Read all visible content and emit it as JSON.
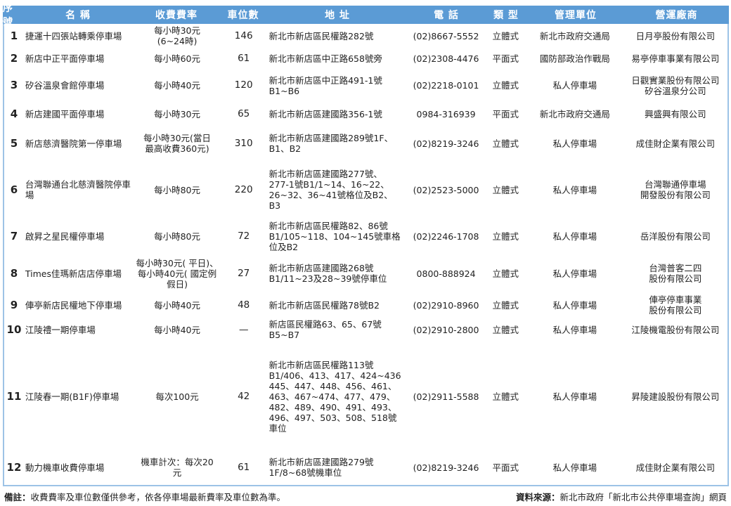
{
  "colors": {
    "header_bg": "#5b9bd5",
    "border": "#9dc3e6"
  },
  "headers": [
    "序號",
    "名 稱",
    "收費費率",
    "車位數",
    "地 址",
    "電 話",
    "類 型",
    "管理單位",
    "營運廠商"
  ],
  "rows": [
    [
      "1",
      "捷運十四張站轉乘停車場",
      "每小時30元\n(6~24時)",
      "146",
      "新北市新店區民權路282號",
      "(02)8667-5552",
      "立體式",
      "新北市政府交通局",
      "日月亭股份有限公司"
    ],
    [
      "2",
      "新店中正平面停車場",
      "每小時60元",
      "61",
      "新北市新店區中正路658號旁",
      "(02)2308-4476",
      "平面式",
      "國防部政治作戰局",
      "易亭停車事業有限公司"
    ],
    [
      "3",
      "矽谷溫泉會館停車場",
      "每小時40元",
      "120",
      "新北市新店區中正路491-1號\nB1~B6",
      "(02)2218-0101",
      "立體式",
      "私人停車場",
      "日觀實業股份有限公司\n矽谷溫泉分公司"
    ],
    [
      "4",
      "新店建國平面停車場",
      "每小時30元",
      "65",
      "新北市新店區建國路356-1號",
      "0984-316939",
      "平面式",
      "新北市政府交通局",
      "興盛興有限公司"
    ],
    [
      "5",
      "新店慈濟醫院第一停車場",
      "每小時30元(當日\n最高收費360元)",
      "310",
      "新北市新店區建國路289號1F、\nB1、B2",
      "(02)8219-3246",
      "立體式",
      "私人停車場",
      "成佳財企業有限公司"
    ],
    [
      "6",
      "台灣聯通台北慈濟醫院停車場",
      "每小時80元",
      "220",
      "新北市新店區建國路277號、\n277-1號B1/1~14、16~22、\n26~32、36~41號格位及B2、\nB3",
      "(02)2523-5000",
      "立體式",
      "私人停車場",
      "台灣聯通停車場\n開發股份有限公司"
    ],
    [
      "7",
      "啟昇之星民權停車場",
      "每小時80元",
      "72",
      "新北市新店區民權路82、86號\nB1/105~118、104~145號車格\n位及B2",
      "(02)2246-1708",
      "立體式",
      "私人停車場",
      "岳洋股份有限公司"
    ],
    [
      "8",
      "Times佳瑪新店店停車場",
      "每小時30元( 平日)、\n每小時40元( 國定例\n假日)",
      "27",
      "新北市新店區建國路268號\nB1/11~23及28~39號停車位",
      "0800-888924",
      "立體式",
      "私人停車場",
      "台灣普客二四\n股份有限公司"
    ],
    [
      "9",
      "俥亭新店民權地下停車場",
      "每小時40元",
      "48",
      "新北市新店區民權路78號B2",
      "(02)2910-8960",
      "立體式",
      "私人停車場",
      "俥亭停車事業\n股份有限公司"
    ],
    [
      "10",
      "江陵禮一期停車場",
      "每小時40元",
      "—",
      "新店區民權路63、65、67號\nB5~B7",
      "(02)2910-2800",
      "立體式",
      "私人停車場",
      "江陵機電股份有限公司"
    ],
    [
      "11",
      "江陵春一期(B1F)停車場",
      "每次100元",
      "42",
      "新北市新店區民權路113號\nB1/406、413、417、424~436\n445、447、448、456、461、\n463、467~474、477、479、\n482、489、490、491、493、\n496、497、503、508、518號\n車位",
      "(02)2911-5588",
      "立體式",
      "私人停車場",
      "昇陵建設股份有限公司"
    ],
    [
      "12",
      "動力機車收費停車場",
      "機車計次：每次20\n元",
      "61",
      "新北市新店區建國路279號\n1F/8~68號機車位",
      "(02)8219-3246",
      "平面式",
      "私人停車場",
      "成佳財企業有限公司"
    ]
  ],
  "footer": {
    "note_label": "備註：",
    "note": "收費費率及車位數僅供參考，依各停車場最新費率及車位數為準。",
    "source_label": "資料來源：",
    "source": "新北市政府「新北市公共停車場查詢」網頁"
  }
}
